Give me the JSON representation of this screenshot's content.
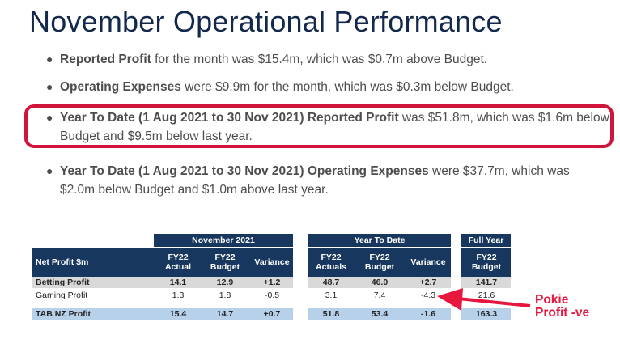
{
  "title": "November Operational Performance",
  "bullets": [
    {
      "bold": "Reported Profit",
      "rest": " for the month was $15.4m, which was $0.7m above Budget."
    },
    {
      "bold": "Operating Expenses",
      "rest": " were $9.9m for the month, which was $0.3m below Budget."
    },
    {
      "bold": "Year To Date (1 Aug 2021 to 30 Nov 2021) Reported Profit",
      "rest": " was $51.8m, which was $1.6m below Budget and $9.5m below last year."
    },
    {
      "bold": "Year To Date (1 Aug 2021 to 30 Nov 2021) Operating Expenses",
      "rest": " were $37.7m, which was $2.0m below Budget and $1.0m above last year."
    }
  ],
  "table": {
    "row_header": "Net Profit $m",
    "groups": {
      "november": "November 2021",
      "ytd": "Year To Date",
      "full_year": "Full Year"
    },
    "columns": {
      "nov_actuals": "FY22\nActual",
      "nov_budget": "FY22\nBudget",
      "nov_variance": "Variance",
      "ytd_actuals": "FY22\nActuals",
      "ytd_budget": "FY22\nBudget",
      "ytd_variance": "Variance",
      "fy_budget": "FY22\nBudget"
    },
    "rows": [
      {
        "label": "Betting Profit",
        "values": [
          "14.1",
          "12.9",
          "+1.2",
          "48.7",
          "46.0",
          "+2.7",
          "141.7"
        ]
      },
      {
        "label": "Gaming Profit",
        "values": [
          "1.3",
          "1.8",
          "-0.5",
          "3.1",
          "7.4",
          "-4.3",
          "21.6"
        ]
      },
      {
        "label": "TAB NZ Profit",
        "values": [
          "15.4",
          "14.7",
          "+0.7",
          "51.8",
          "53.4",
          "-1.6",
          "163.3"
        ]
      }
    ]
  },
  "annotation": "Pokie\nProfit -ve",
  "colors": {
    "title": "#13294b",
    "highlight": "#d0143c",
    "header": "#17375e",
    "annotation": "#e8173e"
  }
}
